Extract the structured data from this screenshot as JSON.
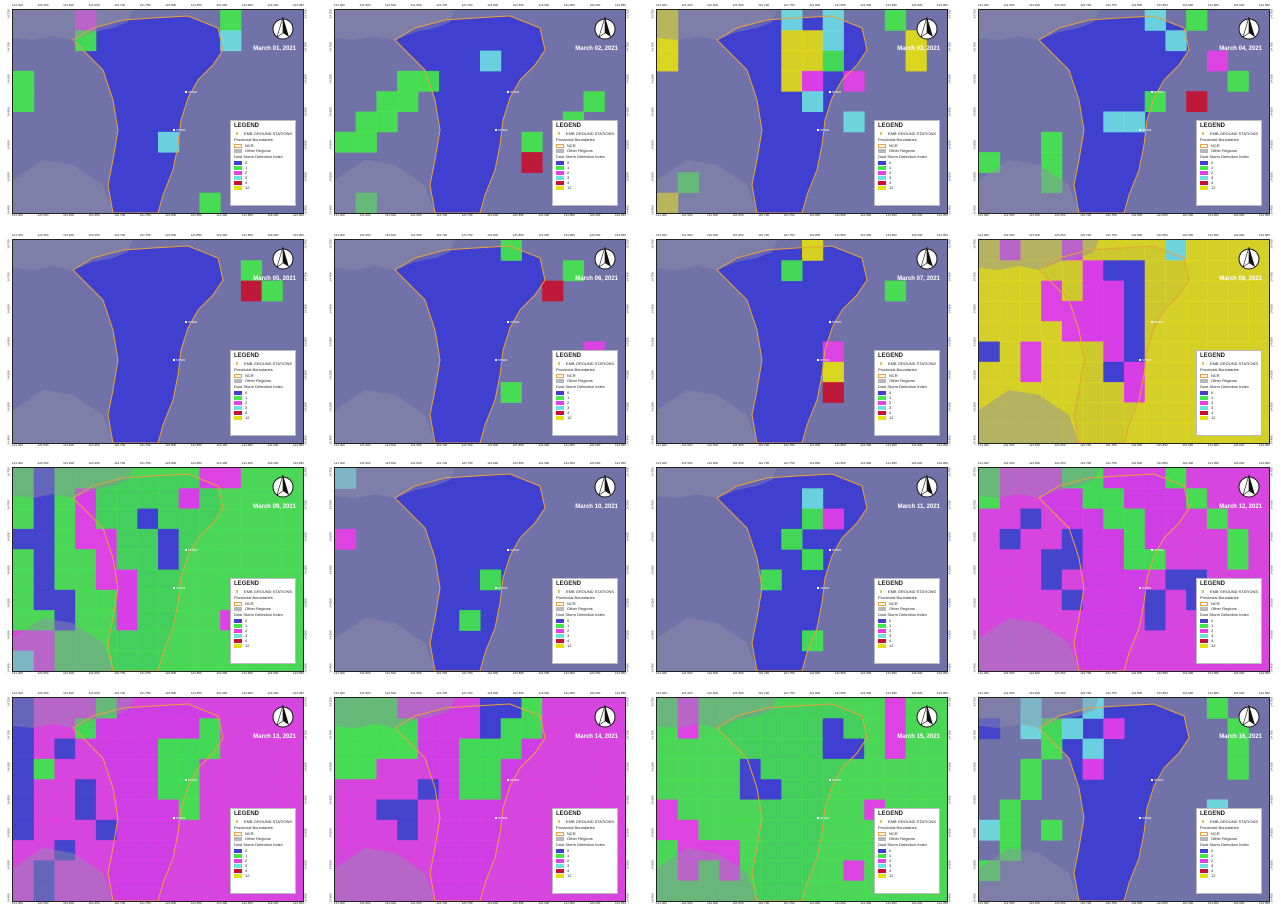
{
  "colors": {
    "ncr_fill": "#3f3fd0",
    "other_regions": "#7173a8",
    "sea": "#8e8fa8",
    "boundary": "#e8a23a",
    "class_0": "#3f3fd0",
    "class_1": "#44e84a",
    "class_2": "#e83ee8",
    "class_3": "#6fe0e0",
    "class_4": "#c8102e",
    "class_12": "#e6e010"
  },
  "ticks": {
    "top": [
      "121.400",
      "121.500",
      "121.600",
      "121.650",
      "121.700",
      "121.750",
      "121.800",
      "121.850",
      "121.900",
      "121.950",
      "124.000",
      "124.050"
    ],
    "bottom": [
      "121.400",
      "121.500",
      "121.600",
      "121.650",
      "121.700",
      "121.750",
      "121.800",
      "121.850",
      "121.900",
      "121.950",
      "124.000",
      "124.050"
    ],
    "left": [
      "14.750",
      "14.700",
      "14.650",
      "14.600",
      "14.550",
      "14.500",
      "14.450"
    ],
    "right": [
      "14.750",
      "14.700",
      "14.650",
      "14.600",
      "14.550",
      "14.500",
      "14.450"
    ]
  },
  "legend": {
    "title": "LEGEND",
    "stations": "EMB GROUND STATIONS",
    "provincial": "Provincial Boundaries",
    "ncr": "NCR",
    "other": "Other Regions",
    "index_title": "Dust Storm Detection Index",
    "classes": [
      "0",
      "1",
      "2",
      "3",
      "4",
      "12"
    ]
  },
  "north_arrow": "north-arrow-icon",
  "stations": [
    {
      "label": "STN01"
    },
    {
      "label": "STN02"
    }
  ],
  "panels": [
    {
      "date": "March 01, 2021"
    },
    {
      "date": "March 02, 2021"
    },
    {
      "date": "March 03, 2021"
    },
    {
      "date": "March 04, 2021"
    },
    {
      "date": "March 05, 2021"
    },
    {
      "date": "March 06, 2021"
    },
    {
      "date": "March 07, 2021"
    },
    {
      "date": "March 08, 2021"
    },
    {
      "date": "March 09, 2021"
    },
    {
      "date": "March 10, 2021"
    },
    {
      "date": "March 11, 2021"
    },
    {
      "date": "March 12, 2021"
    },
    {
      "date": "March 13, 2021"
    },
    {
      "date": "March 14, 2021"
    },
    {
      "date": "March 15, 2021"
    },
    {
      "date": "March 16, 2021"
    }
  ]
}
